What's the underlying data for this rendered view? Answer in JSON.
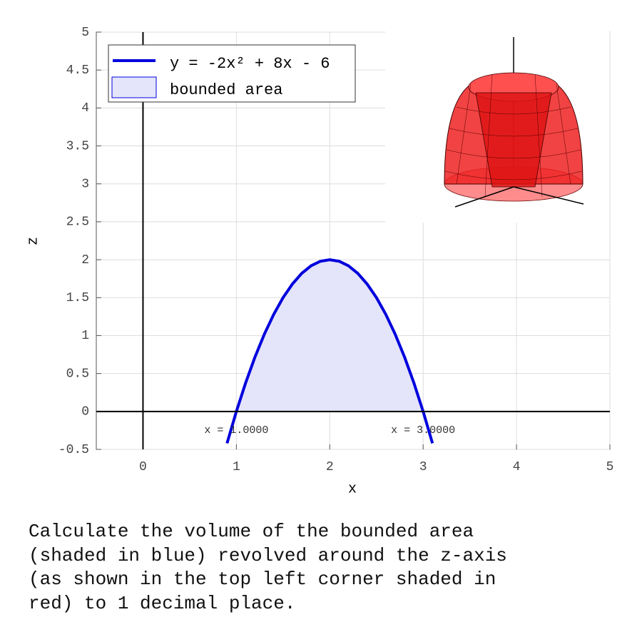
{
  "chart_data": {
    "type": "line",
    "x_label": "x",
    "y_label": "z",
    "x": [
      0.9,
      1.0,
      1.1,
      1.2,
      1.3,
      1.4,
      1.5,
      1.6,
      1.7,
      1.8,
      1.9,
      2.0,
      2.1,
      2.2,
      2.3,
      2.4,
      2.5,
      2.6,
      2.7,
      2.8,
      2.9,
      3.0,
      3.1
    ],
    "series": [
      {
        "name": "y = -2x² + 8x - 6",
        "color": "#0000dd",
        "values": [
          -0.42,
          0,
          0.38,
          0.72,
          1.02,
          1.28,
          1.5,
          1.68,
          1.82,
          1.92,
          1.98,
          2,
          1.98,
          1.92,
          1.82,
          1.68,
          1.5,
          1.28,
          1.02,
          0.72,
          0.38,
          0,
          -0.42
        ]
      }
    ],
    "area": {
      "name": "bounded area",
      "color": "#e4e4fa",
      "edge": "#0000dd",
      "xrange": [
        1,
        3
      ]
    },
    "annotations": [
      {
        "text": "x = 1.0000",
        "x": 1
      },
      {
        "text": "x = 3.0000",
        "x": 3
      }
    ],
    "xlim": [
      -0.5,
      5
    ],
    "ylim": [
      -0.5,
      5
    ],
    "xticks": [
      0,
      1,
      2,
      3,
      4,
      5
    ],
    "yticks": [
      -0.5,
      0,
      0.5,
      1,
      1.5,
      2,
      2.5,
      3,
      3.5,
      4,
      4.5,
      5
    ],
    "grid": true,
    "legend": "upper-left"
  },
  "question": [
    "Calculate the volume of the bounded area",
    "(shaded in blue) revolved around the z-axis",
    "(as shown in the top left corner shaded in",
    "red) to 1 decimal place."
  ]
}
